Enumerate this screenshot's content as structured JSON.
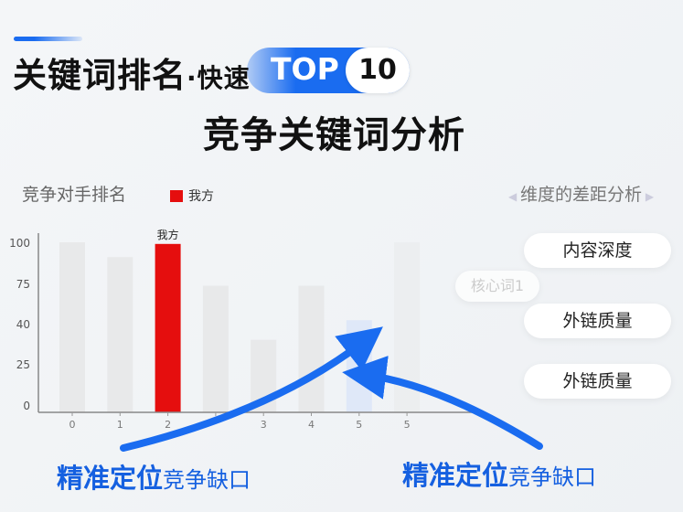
{
  "header": {
    "title_main": "关键词排名",
    "title_dot": "·快速",
    "badge_top": "TOP",
    "badge_num": "10",
    "subtitle": "竞争关键词分析"
  },
  "left_label": "竞争对手排名",
  "right_label": "维度的差距分析",
  "chips": [
    "内容深度",
    "外链质量",
    "外链质量"
  ],
  "faint_chip": "核心词1",
  "bottom_left": {
    "bold": "精准定位",
    "normal": "竞争缺口"
  },
  "bottom_right": {
    "bold": "精准定位",
    "normal": "竞争缺口"
  },
  "colors": {
    "accent": "#1a6cf0",
    "highlight": "#e50e0e",
    "bar": "#e8e9ea"
  },
  "chart_data": {
    "type": "bar",
    "categories": [
      "0",
      "1",
      "2",
      "",
      "3",
      "4",
      "5",
      "5"
    ],
    "values": [
      100,
      91,
      99,
      73,
      34,
      73,
      43,
      100
    ],
    "highlight_index": 2,
    "highlight_label": "我方",
    "focus_index": 6,
    "legend": [
      "我方"
    ],
    "y_ticks": [
      "100",
      "75",
      "40",
      "25",
      "0"
    ],
    "y_tick_values": [
      100,
      75,
      40,
      25,
      0
    ],
    "grid": false,
    "legend_position": "top"
  }
}
